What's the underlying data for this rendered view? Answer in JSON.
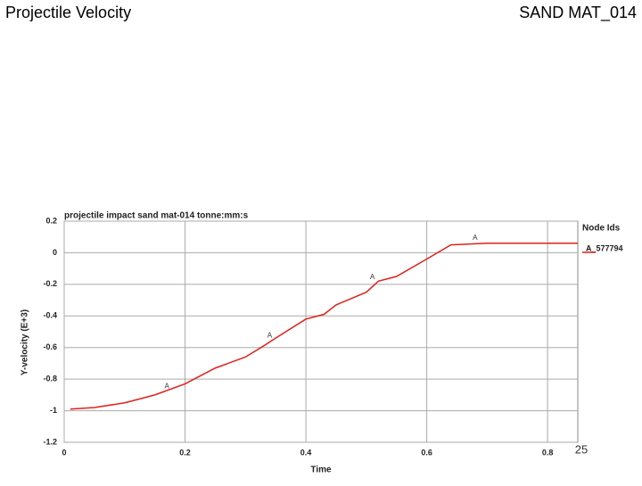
{
  "header": {
    "title": "Projectile Velocity",
    "subtitle": "SAND MAT_014",
    "page_number": "25"
  },
  "chart_data": {
    "type": "line",
    "title": "projectile impact sand mat-014 tonne:mm:s",
    "x_label": "Time",
    "y_label": "Y-velocity (E+3)",
    "legend_title": "Node Ids",
    "x": [
      0.01,
      0.05,
      0.1,
      0.15,
      0.2,
      0.25,
      0.3,
      0.33,
      0.35,
      0.4,
      0.43,
      0.45,
      0.5,
      0.52,
      0.55,
      0.6,
      0.64,
      0.7,
      0.85
    ],
    "series": [
      {
        "name": "A_577794",
        "color": "#e0201b",
        "values": [
          -0.99,
          -0.98,
          -0.95,
          -0.9,
          -0.83,
          -0.73,
          -0.66,
          -0.59,
          -0.54,
          -0.42,
          -0.39,
          -0.33,
          -0.25,
          -0.18,
          -0.15,
          -0.04,
          0.05,
          0.06,
          0.06
        ]
      }
    ],
    "markers": {
      "label": "A",
      "x": [
        0.17,
        0.34,
        0.51,
        0.68
      ],
      "values": [
        -0.88,
        -0.56,
        -0.19,
        0.06
      ]
    },
    "xlim": [
      0,
      0.85
    ],
    "ylim": [
      -1.2,
      0.2
    ],
    "xticks": [
      0,
      0.2,
      0.4,
      0.6,
      0.8
    ],
    "yticks": [
      0.2,
      0,
      -0.2,
      -0.4,
      -0.6,
      -0.8,
      -1,
      -1.2
    ],
    "grid": true
  }
}
